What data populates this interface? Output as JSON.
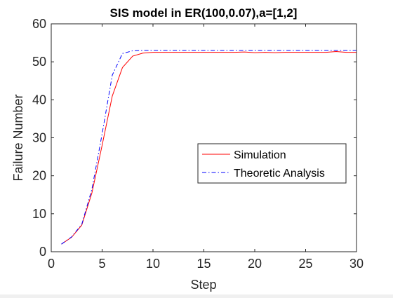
{
  "chart_data": {
    "type": "line",
    "title": "SIS model in ER(100,0.07),a=[1,2]",
    "xlabel": "Step",
    "ylabel": "Failure Number",
    "xlim": [
      0,
      30
    ],
    "ylim": [
      0,
      60
    ],
    "xticks": [
      0,
      5,
      10,
      15,
      20,
      25,
      30
    ],
    "yticks": [
      0,
      10,
      20,
      30,
      40,
      50,
      60
    ],
    "grid": false,
    "legend_position": "right-center",
    "series": [
      {
        "name": "Simulation",
        "color": "#ff0000",
        "style": "solid",
        "x": [
          1,
          2,
          3,
          4,
          5,
          6,
          7,
          8,
          9,
          10,
          11,
          12,
          13,
          14,
          15,
          16,
          17,
          18,
          19,
          20,
          21,
          22,
          23,
          24,
          25,
          26,
          27,
          28,
          29,
          30
        ],
        "y": [
          2,
          3.8,
          7,
          15.5,
          28,
          41,
          48.5,
          51.5,
          52.3,
          52.5,
          52.5,
          52.5,
          52.5,
          52.5,
          52.5,
          52.5,
          52.5,
          52.5,
          52.6,
          52.4,
          52.5,
          52.4,
          52.5,
          52.5,
          52.5,
          52.5,
          52.5,
          52.7,
          52.5,
          52.5
        ]
      },
      {
        "name": "Theoretic Analysis",
        "color": "#0000ff",
        "style": "dashdot",
        "x": [
          1,
          2,
          3,
          4,
          5,
          6,
          7,
          8,
          9,
          10,
          11,
          12,
          13,
          14,
          15,
          16,
          17,
          18,
          19,
          20,
          21,
          22,
          23,
          24,
          25,
          26,
          27,
          28,
          29,
          30
        ],
        "y": [
          2,
          3.9,
          7.2,
          16.5,
          31,
          46.5,
          52.2,
          52.9,
          53,
          53,
          53,
          53,
          53,
          53,
          53,
          53,
          53,
          53,
          53,
          53,
          53,
          53,
          53,
          53,
          53,
          53,
          53,
          53,
          53,
          53
        ]
      }
    ]
  }
}
